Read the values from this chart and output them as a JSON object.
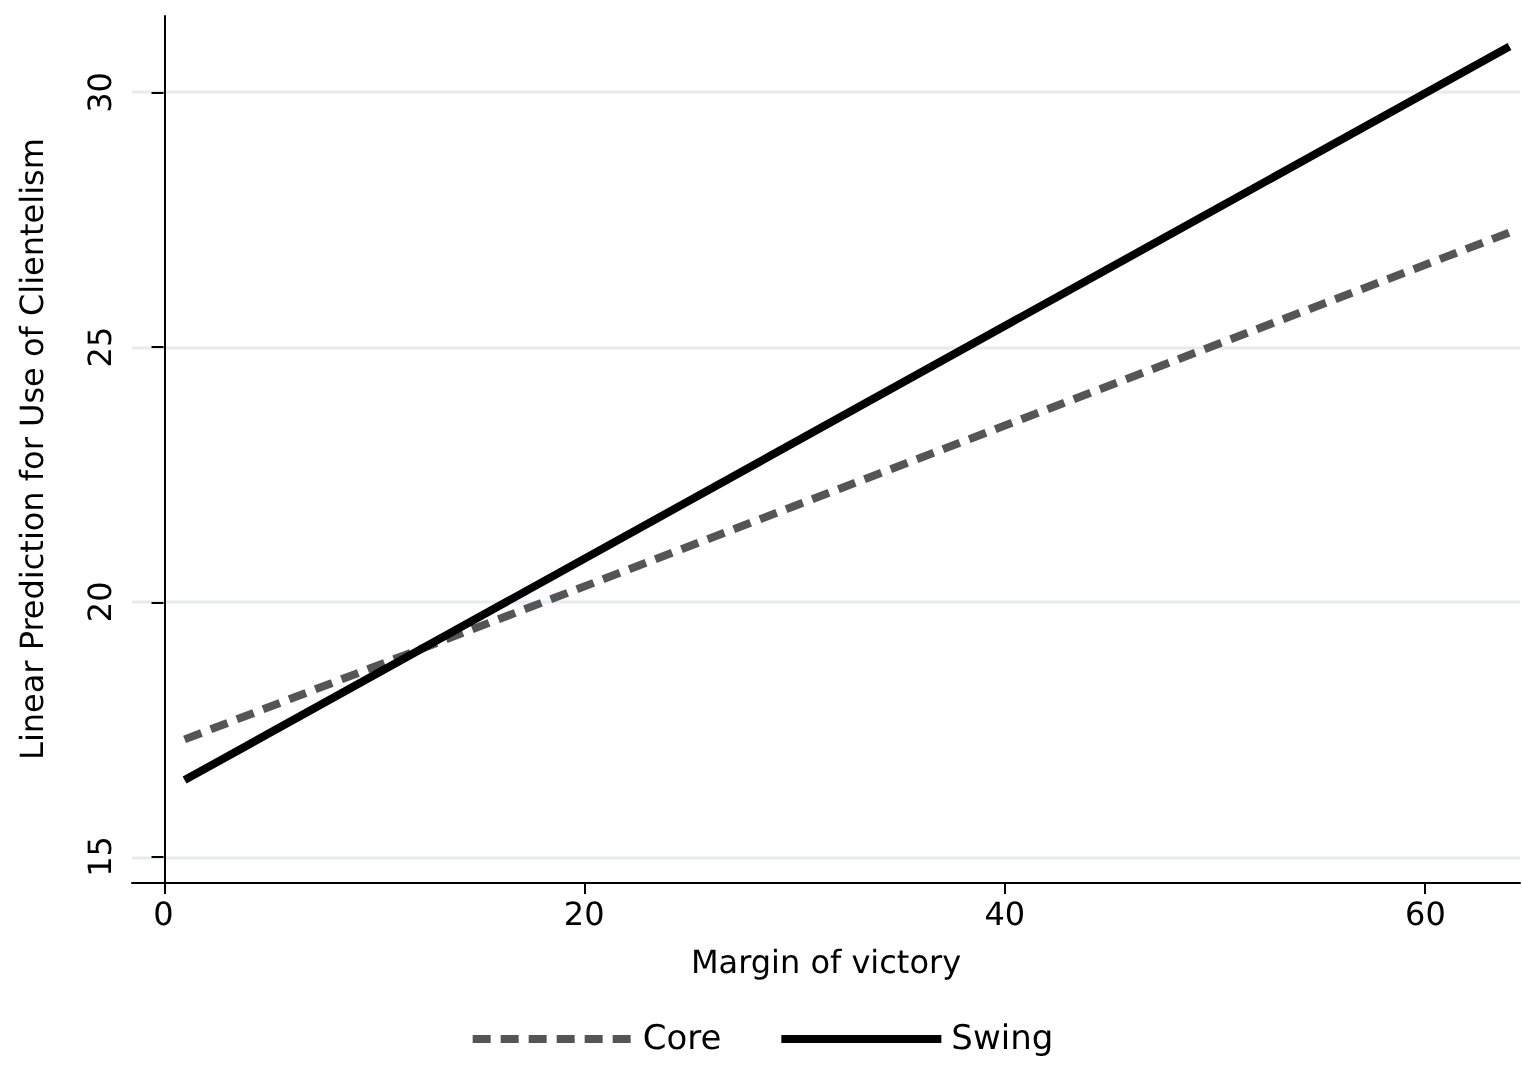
{
  "chart_data": {
    "type": "line",
    "xlabel": "Margin of victory",
    "ylabel": "Linear Prediction for Use of Clientelism",
    "xlim": [
      -1.5,
      64.5
    ],
    "xticks": [
      0,
      20,
      40,
      60
    ],
    "ylim": [
      14.5,
      31.5
    ],
    "yticks": [
      15,
      20,
      25,
      30
    ],
    "grid": "y",
    "legend": "bottom",
    "marker": "none",
    "x": [
      1,
      64
    ],
    "series": [
      {
        "name": "Core",
        "color": "#555555",
        "line_style": "dashed",
        "values": [
          17.3,
          27.25
        ]
      },
      {
        "name": "Swing",
        "color": "#000000",
        "line_style": "solid",
        "values": [
          16.5,
          30.9
        ]
      }
    ]
  }
}
